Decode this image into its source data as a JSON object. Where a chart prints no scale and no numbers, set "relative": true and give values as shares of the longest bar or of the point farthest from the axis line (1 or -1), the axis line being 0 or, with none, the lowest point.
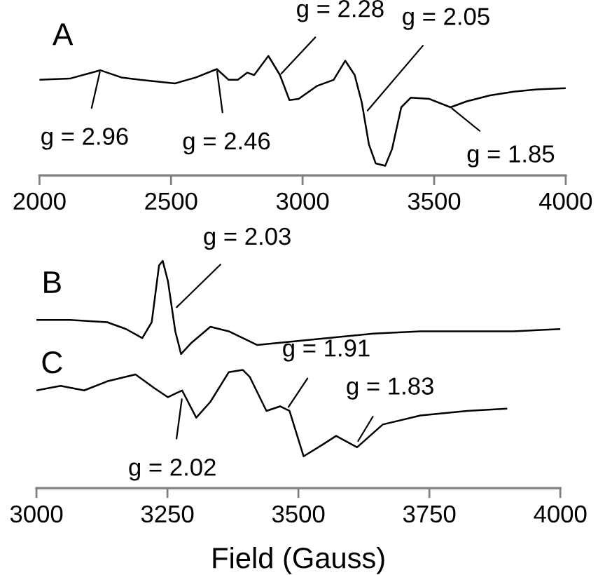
{
  "chart_data": [
    {
      "type": "line",
      "relative": true,
      "xlim": [
        2000,
        4000
      ],
      "xticks": [
        2000,
        2500,
        3000,
        3500,
        4000
      ],
      "tick_labels": "x",
      "grid": false,
      "legend": false,
      "series": [
        {
          "name": "A",
          "color": "#000000",
          "x": [
            2000,
            2115,
            2231,
            2311,
            2382,
            2515,
            2595,
            2674,
            2719,
            2754,
            2790,
            2816,
            2870,
            2914,
            2950,
            2985,
            3056,
            3118,
            3162,
            3198,
            3225,
            3252,
            3278,
            3314,
            3340,
            3375,
            3411,
            3482,
            3562,
            3624,
            3713,
            3802,
            3890,
            4000
          ],
          "values": [
            0.8,
            0.81,
            0.88,
            0.82,
            0.8,
            0.77,
            0.82,
            0.89,
            0.8,
            0.8,
            0.86,
            0.84,
            1.0,
            0.84,
            0.63,
            0.64,
            0.75,
            0.8,
            0.96,
            0.84,
            0.61,
            0.26,
            0.1,
            0.08,
            0.22,
            0.57,
            0.65,
            0.64,
            0.57,
            0.62,
            0.67,
            0.7,
            0.72,
            0.73
          ]
        }
      ],
      "annotations": [
        {
          "text": "g = 2.96",
          "x": 2231,
          "y": 0.88
        },
        {
          "text": "g = 2.46",
          "x": 2674,
          "y": 0.89
        },
        {
          "text": "g = 2.28",
          "x": 2914,
          "y": 0.84
        },
        {
          "text": "g = 2.05",
          "x": 3242,
          "y": 0.53
        },
        {
          "text": "g = 1.85",
          "x": 3562,
          "y": 0.57
        }
      ]
    },
    {
      "type": "line",
      "relative": true,
      "xlim": [
        3000,
        4000
      ],
      "xticks": [
        3000,
        3250,
        3500,
        3750,
        4000
      ],
      "tick_labels": "x",
      "grid": false,
      "legend": false,
      "xlabel": "Field (Gauss)",
      "series": [
        {
          "name": "B",
          "color": "#000000",
          "x": [
            3000,
            3064,
            3135,
            3171,
            3202,
            3220,
            3234,
            3241,
            3251,
            3265,
            3276,
            3296,
            3332,
            3367,
            3421,
            3465,
            3554,
            3643,
            3733,
            3822,
            3911,
            4000
          ],
          "values": [
            0.74,
            0.74,
            0.73,
            0.7,
            0.66,
            0.73,
            0.98,
            1.0,
            0.91,
            0.69,
            0.59,
            0.64,
            0.71,
            0.69,
            0.63,
            0.64,
            0.66,
            0.68,
            0.69,
            0.69,
            0.69,
            0.7
          ]
        },
        {
          "name": "C",
          "color": "#000000",
          "x": [
            3000,
            3046,
            3091,
            3135,
            3189,
            3225,
            3251,
            3278,
            3305,
            3332,
            3367,
            3394,
            3407,
            3439,
            3465,
            3483,
            3510,
            3545,
            3572,
            3612,
            3661,
            3733,
            3822,
            3897
          ],
          "values": [
            0.43,
            0.45,
            0.43,
            0.47,
            0.5,
            0.44,
            0.4,
            0.43,
            0.31,
            0.38,
            0.51,
            0.52,
            0.49,
            0.34,
            0.36,
            0.34,
            0.14,
            0.19,
            0.23,
            0.18,
            0.28,
            0.32,
            0.34,
            0.35
          ]
        }
      ],
      "annotations": [
        {
          "text": "g = 2.03",
          "x": 3265,
          "y": 0.79
        },
        {
          "text": "g = 2.02",
          "x": 3278,
          "y": 0.4
        },
        {
          "text": "g = 1.91",
          "x": 3479,
          "y": 0.35
        },
        {
          "text": "g = 1.83",
          "x": 3612,
          "y": 0.2
        }
      ]
    }
  ]
}
